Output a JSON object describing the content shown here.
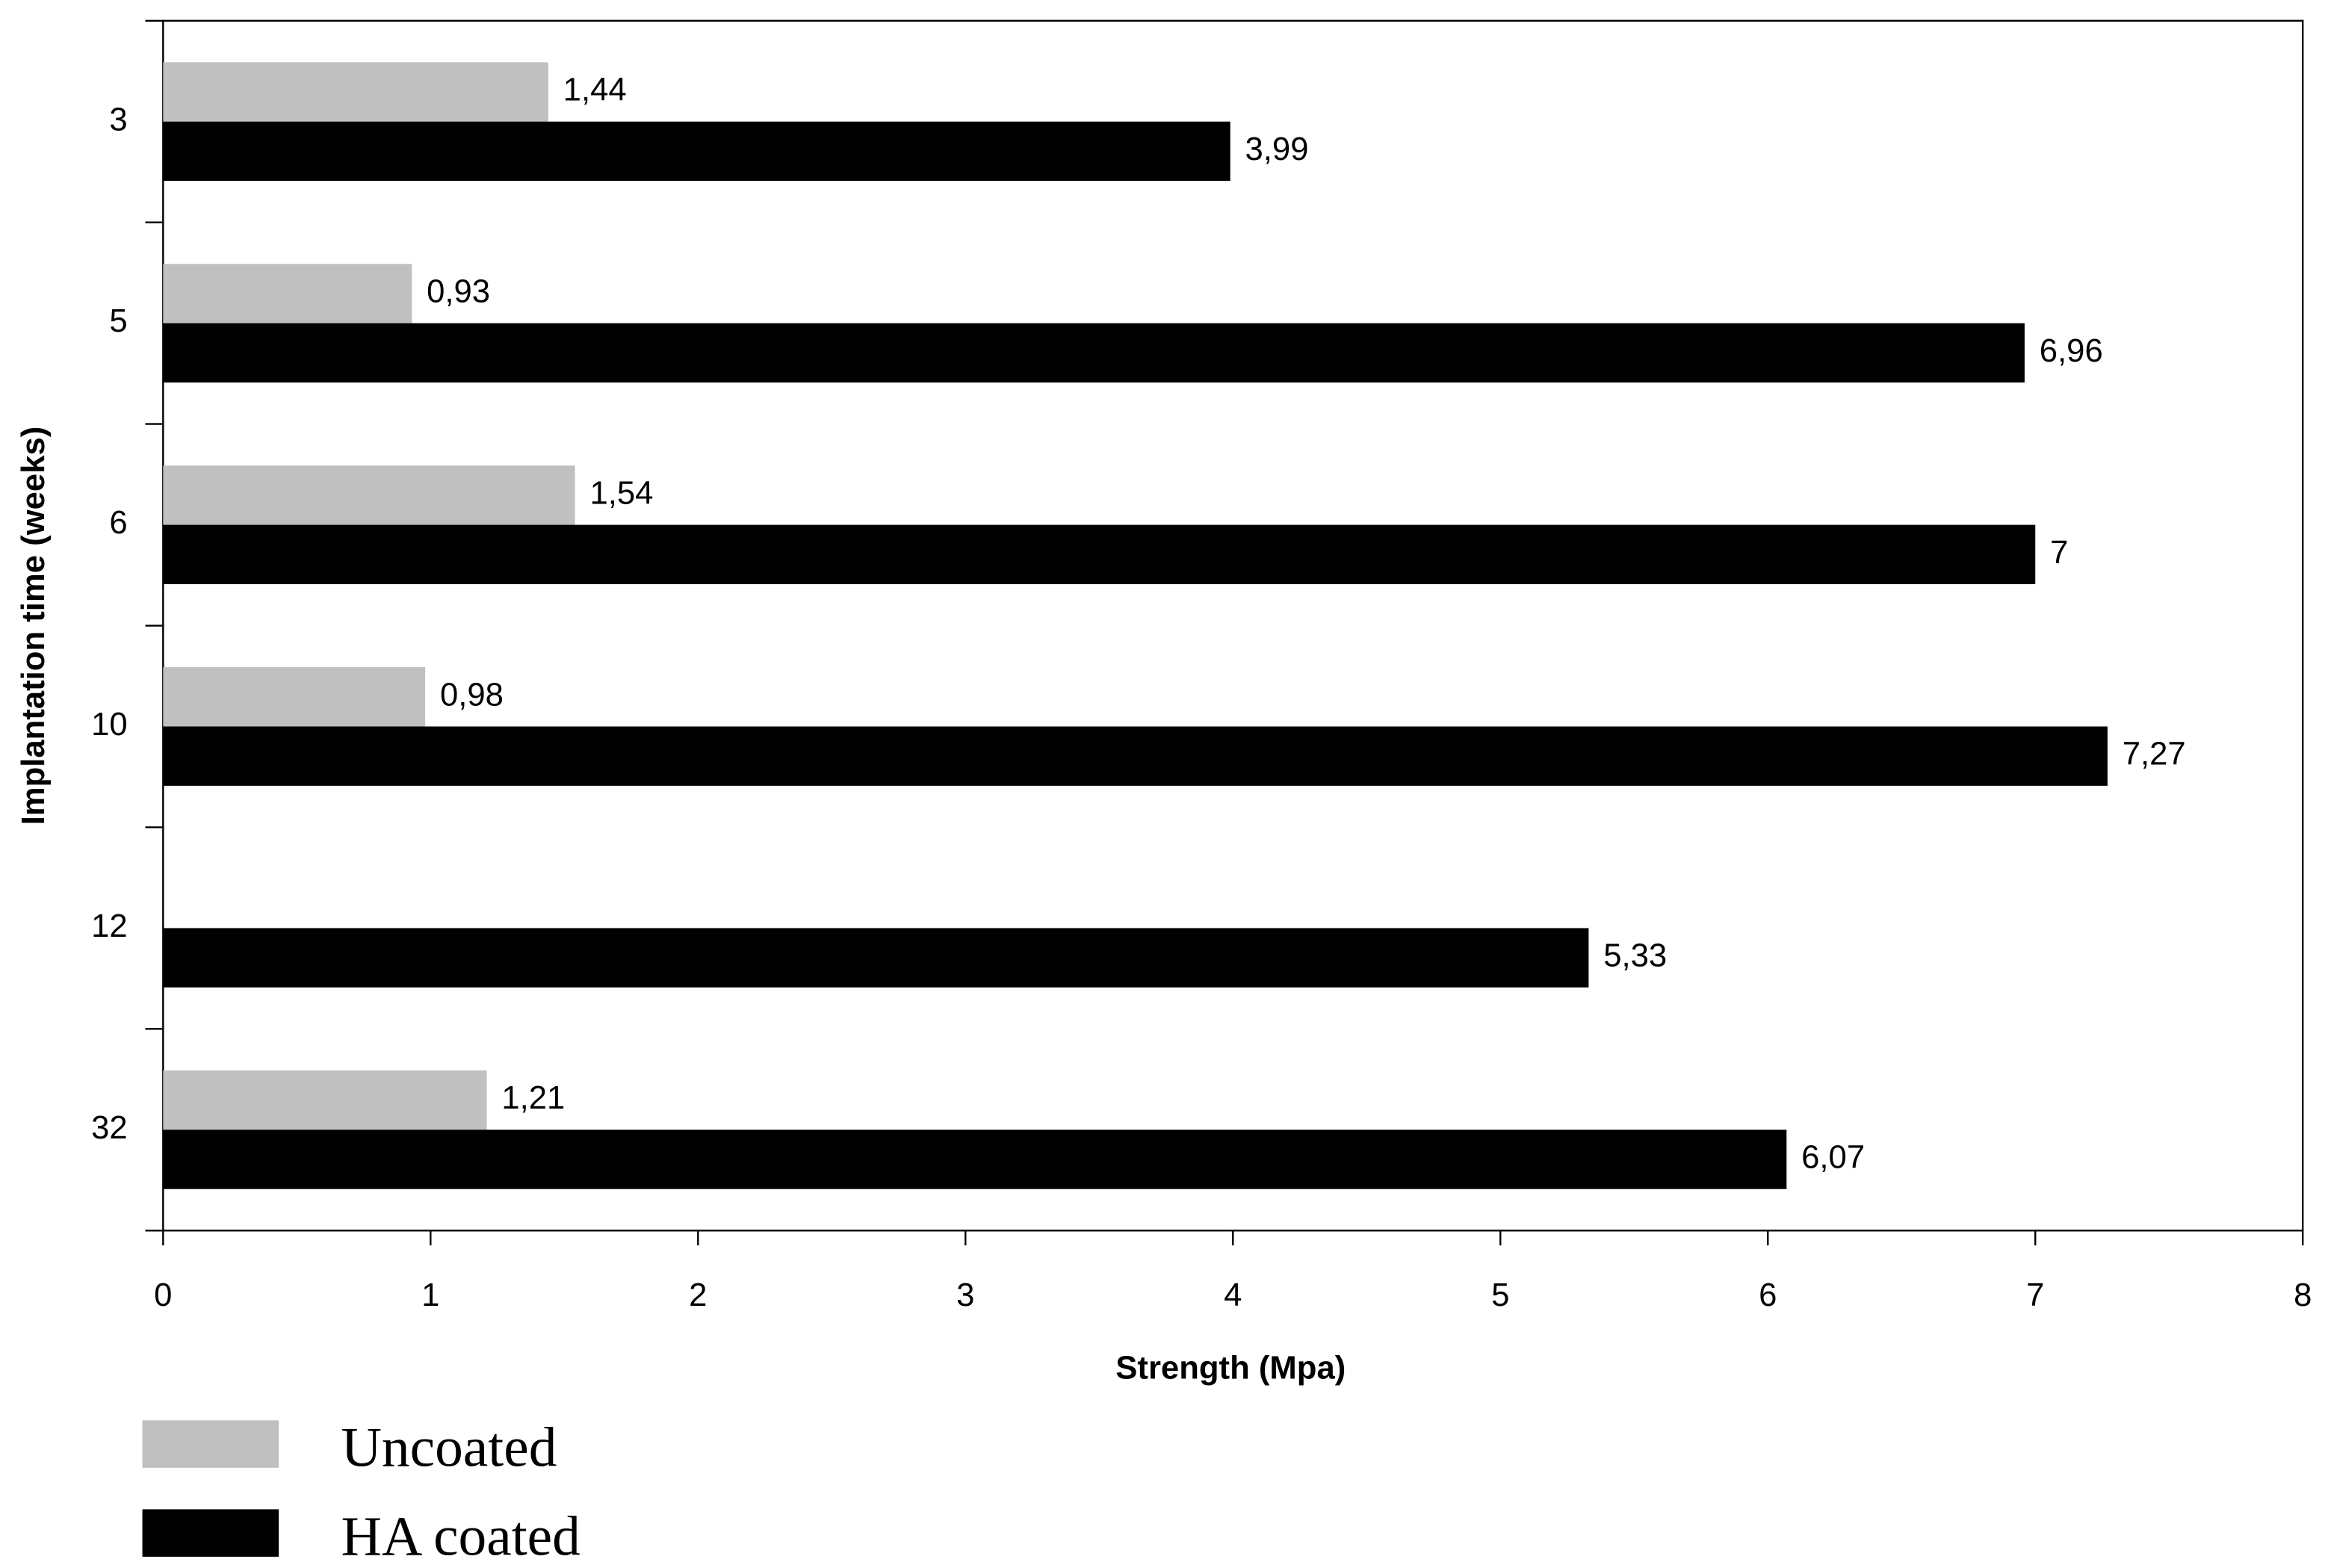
{
  "chart_data": {
    "type": "bar",
    "orientation": "horizontal",
    "x_label": "Strength (Mpa)",
    "y_label": "Implantation time (weeks)",
    "categories": [
      "3",
      "5",
      "6",
      "10",
      "12",
      "32"
    ],
    "series": [
      {
        "name": "Uncoated",
        "color": "#c0c0c0",
        "values": [
          1.44,
          0.93,
          1.54,
          0.98,
          null,
          1.21
        ],
        "value_labels": [
          "1,44",
          "0,93",
          "1,54",
          "0,98",
          null,
          "1,21"
        ]
      },
      {
        "name": "HA coated",
        "color": "#000000",
        "values": [
          3.99,
          6.96,
          7,
          7.27,
          5.33,
          6.07
        ],
        "value_labels": [
          "3,99",
          "6,96",
          "7",
          "7,27",
          "5,33",
          "6,07"
        ]
      }
    ],
    "xlim": [
      0,
      8
    ],
    "xticks": [
      0,
      1,
      2,
      3,
      4,
      5,
      6,
      7,
      8
    ],
    "grid": false,
    "legend": "bottom-left"
  }
}
